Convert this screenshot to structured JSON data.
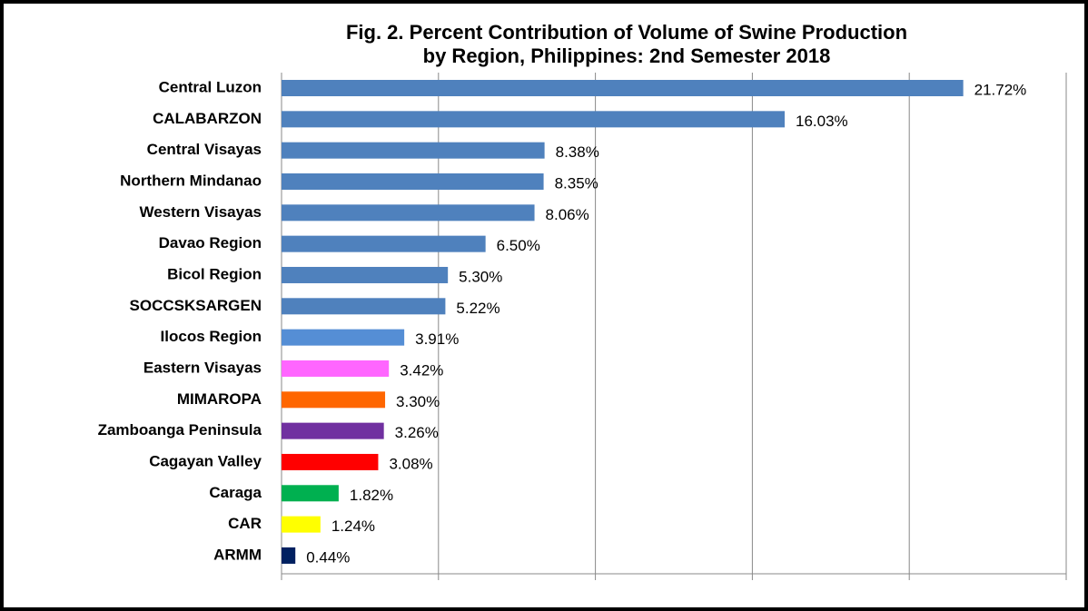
{
  "chart_data": {
    "type": "barh",
    "title": [
      "Fig. 2. Percent Contribution of  Volume of  Swine Production",
      "by Region, Philippines: 2nd Semester 2018"
    ],
    "categories": [
      "Central Luzon",
      "CALABARZON",
      "Central Visayas",
      "Northern Mindanao",
      "Western Visayas",
      "Davao Region",
      "Bicol Region",
      "SOCCSKSARGEN",
      "Ilocos Region",
      "Eastern Visayas",
      "MIMAROPA",
      "Zamboanga Peninsula",
      "Cagayan Valley",
      "Caraga",
      "CAR",
      "ARMM"
    ],
    "values": [
      21.72,
      16.03,
      8.38,
      8.35,
      8.06,
      6.5,
      5.3,
      5.22,
      3.91,
      3.42,
      3.3,
      3.26,
      3.08,
      1.82,
      1.24,
      0.44
    ],
    "value_labels": [
      "21.72%",
      "16.03%",
      "8.38%",
      "8.35%",
      "8.06%",
      "6.50%",
      "5.30%",
      "5.22%",
      "3.91%",
      "3.42%",
      "3.30%",
      "3.26%",
      "3.08%",
      "1.82%",
      "1.24%",
      "0.44%"
    ],
    "colors": [
      "#4f81bd",
      "#4f81bd",
      "#4f81bd",
      "#4f81bd",
      "#4f81bd",
      "#4f81bd",
      "#4f81bd",
      "#4f81bd",
      "#558ed5",
      "#ff66ff",
      "#ff6600",
      "#7030a0",
      "#ff0000",
      "#00b050",
      "#ffff00",
      "#002060"
    ],
    "xlim": [
      0,
      25
    ],
    "xticks": [
      0,
      5,
      10,
      15,
      20,
      25
    ],
    "grid": true
  }
}
